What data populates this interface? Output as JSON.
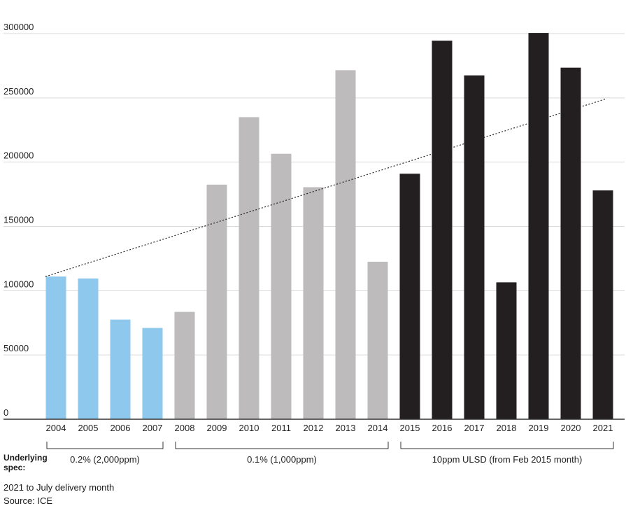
{
  "chart_data": {
    "type": "bar",
    "title": "",
    "xlabel": "",
    "ylabel": "",
    "ylim": [
      0,
      300000
    ],
    "yticks": [
      0,
      50000,
      100000,
      150000,
      200000,
      250000,
      300000
    ],
    "ytick_labels": [
      "0",
      "50000",
      "100000",
      "150000",
      "200000",
      "250000",
      "300000"
    ],
    "categories": [
      "2004",
      "2005",
      "2006",
      "2007",
      "2008",
      "2009",
      "2010",
      "2011",
      "2012",
      "2013",
      "2014",
      "2015",
      "2016",
      "2017",
      "2018",
      "2019",
      "2020",
      "2021"
    ],
    "values": [
      111000,
      109500,
      77500,
      71000,
      83500,
      182500,
      235000,
      206500,
      180500,
      271500,
      122500,
      191000,
      294500,
      267500,
      106500,
      300500,
      273500,
      178000
    ],
    "grid": true,
    "legend": "none",
    "colors": {
      "blue": "#8ec8ec",
      "grey": "#bdbbbc",
      "black": "#231f20",
      "gridline": "#d9d9d9",
      "axis": "#333333"
    },
    "groups": [
      {
        "label": "0.2% (2,000ppm)",
        "start": 0,
        "end": 3,
        "color": "#8ec8ec"
      },
      {
        "label": "0.1% (1,000ppm)",
        "start": 4,
        "end": 10,
        "color": "#bdbbbc"
      },
      {
        "label": "10ppm ULSD (from Feb 2015 month)",
        "start": 11,
        "end": 17,
        "color": "#231f20"
      }
    ],
    "trendline": {
      "style": "dotted",
      "start": [
        0,
        111000
      ],
      "end": [
        17,
        249000
      ]
    }
  },
  "spec_label": "Underlying spec:",
  "notes": {
    "delivery": "2021 to July delivery month",
    "source": "Source: ICE"
  }
}
